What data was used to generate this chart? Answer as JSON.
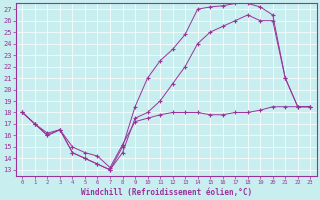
{
  "xlabel": "Windchill (Refroidissement éolien,°C)",
  "bg_color": "#c8eef0",
  "line_color": "#993399",
  "grid_color": "#ffffff",
  "xlim": [
    -0.5,
    23.5
  ],
  "ylim": [
    12.5,
    27.5
  ],
  "xticks": [
    0,
    1,
    2,
    3,
    4,
    5,
    6,
    7,
    8,
    9,
    10,
    11,
    12,
    13,
    14,
    15,
    16,
    17,
    18,
    19,
    20,
    21,
    22,
    23
  ],
  "yticks": [
    13,
    14,
    15,
    16,
    17,
    18,
    19,
    20,
    21,
    22,
    23,
    24,
    25,
    26,
    27
  ],
  "line1_x": [
    0,
    1,
    2,
    3,
    4,
    5,
    6,
    7,
    8,
    9,
    10,
    11,
    12,
    13,
    14,
    15,
    16,
    17,
    18,
    19,
    20,
    21,
    22,
    23
  ],
  "line1_y": [
    18,
    17,
    16,
    16.5,
    14.5,
    14,
    13.5,
    13,
    15,
    18.5,
    21,
    22.5,
    23.5,
    24.8,
    27,
    27.2,
    27.3,
    27.5,
    27.5,
    27.2,
    26.5,
    21,
    18.5,
    18.5
  ],
  "line2_x": [
    0,
    1,
    2,
    3,
    4,
    5,
    6,
    7,
    8,
    9,
    10,
    11,
    12,
    13,
    14,
    15,
    16,
    17,
    18,
    19,
    20,
    21,
    22,
    23
  ],
  "line2_y": [
    18,
    17,
    16,
    16.5,
    14.5,
    14,
    13.5,
    13,
    14.5,
    17.5,
    18,
    19,
    20.5,
    22,
    24,
    25,
    25.5,
    26,
    26.5,
    26,
    26,
    21,
    18.5,
    18.5
  ],
  "line3_x": [
    0,
    1,
    2,
    3,
    4,
    5,
    6,
    7,
    8,
    9,
    10,
    11,
    12,
    13,
    14,
    15,
    16,
    17,
    18,
    19,
    20,
    21,
    22,
    23
  ],
  "line3_y": [
    18,
    17,
    16.2,
    16.5,
    15,
    14.5,
    14.2,
    13.2,
    15.2,
    17.2,
    17.5,
    17.8,
    18,
    18,
    18,
    17.8,
    17.8,
    18,
    18,
    18.2,
    18.5,
    18.5,
    18.5,
    18.5
  ]
}
